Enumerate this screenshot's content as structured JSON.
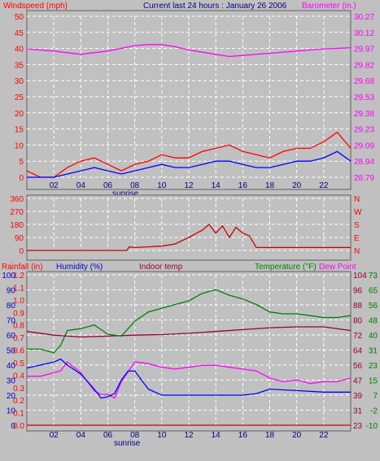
{
  "header": {
    "left_label": "Windspeed (mph)",
    "title": "Current last 24 hours : January 26 2006",
    "right_label": "Barometer (in.)"
  },
  "colors": {
    "background": "#c0c0c0",
    "plot_bg": "#c0c0c0",
    "grid": "#ffffff",
    "wind_avg": "#0000ff",
    "wind_gust": "#ff0000",
    "barometer": "#ff00ff",
    "direction": "#cc0000",
    "indoor": "#990033",
    "outdoor_temp": "#008000",
    "dew_point": "#ff00ff",
    "humidity": "#0000ff",
    "rain": "#cc0000"
  },
  "chart_data": [
    {
      "id": "wind-baro",
      "type": "line",
      "title": "Current last 24 hours : January 26 2006",
      "left_axis": {
        "label": "Windspeed (mph)",
        "ticks": [
          "50",
          "45",
          "40",
          "35",
          "30",
          "25",
          "20",
          "15",
          "10",
          "5",
          "0"
        ],
        "ylim": [
          0,
          50
        ]
      },
      "right_axis": {
        "label": "Barometer (in.)",
        "ticks": [
          "30.27",
          "30.12",
          "29.97",
          "29.82",
          "29.68",
          "29.53",
          "29.38",
          "29.23",
          "29.09",
          "28.94",
          "28.79"
        ],
        "ylim": [
          28.79,
          30.27
        ]
      },
      "x_ticks": [
        "02",
        "04",
        "06",
        "08",
        "10",
        "12",
        "14",
        "16",
        "18",
        "20",
        "22"
      ],
      "x_note": "sunrise",
      "xlim": [
        0,
        24
      ],
      "grid": true,
      "series": [
        {
          "key": "barometer",
          "axis": "right",
          "x": [
            0,
            2,
            4,
            6,
            8,
            9,
            10,
            11,
            12,
            14,
            15,
            16,
            18,
            20,
            22,
            24
          ],
          "values": [
            29.97,
            29.95,
            29.92,
            29.95,
            30.0,
            30.01,
            30.01,
            29.99,
            29.96,
            29.92,
            29.9,
            29.91,
            29.93,
            29.95,
            29.97,
            29.98
          ]
        },
        {
          "key": "wind_gust",
          "axis": "left",
          "x": [
            0,
            1,
            2,
            3,
            4,
            5,
            6,
            7,
            8,
            9,
            10,
            11,
            12,
            13,
            14,
            15,
            16,
            17,
            18,
            19,
            20,
            21,
            22,
            23,
            24
          ],
          "values": [
            2,
            0,
            0,
            3,
            5,
            6,
            4,
            2,
            4,
            5,
            7,
            6,
            6,
            8,
            9,
            10,
            8,
            7,
            6,
            8,
            9,
            9,
            11,
            14,
            9
          ]
        },
        {
          "key": "wind_avg",
          "axis": "left",
          "x": [
            0,
            1,
            2,
            3,
            4,
            5,
            6,
            7,
            8,
            9,
            10,
            11,
            12,
            13,
            14,
            15,
            16,
            17,
            18,
            19,
            20,
            21,
            22,
            23,
            24
          ],
          "values": [
            0,
            0,
            0,
            1,
            2,
            3,
            2,
            1,
            2,
            3,
            4,
            3,
            3,
            4,
            5,
            5,
            4,
            3,
            3,
            4,
            5,
            5,
            6,
            8,
            5
          ]
        }
      ]
    },
    {
      "id": "direction",
      "type": "line",
      "left_axis": {
        "ticks": [
          "360",
          "270",
          "180",
          "90",
          "0"
        ],
        "ylim": [
          0,
          360
        ]
      },
      "right_axis": {
        "ticks": [
          "N",
          "W",
          "S",
          "E",
          "N"
        ]
      },
      "xlim": [
        0,
        24
      ],
      "grid": true,
      "series": [
        {
          "key": "direction",
          "x": [
            0,
            7.4,
            7.6,
            8,
            9,
            10,
            11,
            12,
            13,
            13.5,
            14,
            14.5,
            15,
            15.5,
            16,
            16.5,
            17,
            18,
            20,
            22,
            24
          ],
          "values": [
            0,
            0,
            25,
            20,
            25,
            30,
            45,
            90,
            140,
            180,
            120,
            170,
            90,
            160,
            120,
            100,
            20,
            20,
            20,
            20,
            20
          ]
        }
      ]
    },
    {
      "id": "temp-hum",
      "type": "line",
      "labels": {
        "rainfall": "Rainfall (in)",
        "humidity": "Humidity (%)",
        "indoor": "Indoor temp",
        "temperature": "Temperature (°F)",
        "dewpoint": "Dew Point"
      },
      "left_axes": {
        "humidity_ticks": [
          "100",
          "90",
          "80",
          "70",
          "60",
          "50",
          "40",
          "30",
          "20",
          "10",
          "0"
        ],
        "rainfall_ticks": [
          "1.2",
          "1.1",
          "1.0",
          "0.9",
          "0.8",
          "0.7",
          "0.6",
          "0.5",
          "0.4",
          "0.3",
          "0.2",
          "0.1",
          "0.0"
        ]
      },
      "right_axes": {
        "temp_ticks": [
          "104",
          "96",
          "88",
          "80",
          "72",
          "64",
          "56",
          "47",
          "39",
          "31",
          "23"
        ],
        "dewpoint_ticks": [
          "73",
          "65",
          "56",
          "48",
          "40",
          "31",
          "23",
          "15",
          "7",
          "-2",
          "-10"
        ]
      },
      "x_ticks": [
        "02",
        "04",
        "06",
        "08",
        "10",
        "12",
        "14",
        "16",
        "18",
        "20",
        "22"
      ],
      "x_note": "sunrise",
      "xlim": [
        0,
        24
      ],
      "grid": true,
      "series": [
        {
          "key": "indoor",
          "axis": "temp",
          "x": [
            0,
            2,
            4,
            6,
            8,
            10,
            12,
            14,
            16,
            18,
            20,
            22,
            24
          ],
          "values": [
            73.5,
            71.5,
            70.5,
            71.0,
            71.5,
            71.8,
            72.5,
            73.5,
            74.5,
            75.5,
            76,
            76,
            74
          ]
        },
        {
          "key": "outdoor_temp",
          "axis": "temp",
          "x": [
            0,
            1,
            2,
            2.5,
            3,
            4,
            5,
            6,
            7,
            8,
            9,
            10,
            11,
            12,
            13,
            14,
            15,
            16,
            17,
            18,
            19,
            20,
            21,
            22,
            23,
            24
          ],
          "values": [
            64,
            64,
            62,
            66,
            74,
            75,
            77,
            72,
            71,
            79,
            84,
            86,
            88,
            90,
            94,
            96,
            93,
            91,
            88,
            84,
            83,
            83,
            82,
            81,
            81,
            82
          ]
        },
        {
          "key": "dew_point",
          "axis": "dew",
          "x": [
            0,
            1,
            2,
            2.5,
            3,
            4,
            5,
            5.5,
            6,
            6.5,
            7,
            8,
            9,
            10,
            11,
            12,
            13,
            14,
            15,
            16,
            17,
            18,
            19,
            20,
            21,
            22,
            23,
            24
          ],
          "values": [
            17,
            17,
            19,
            20,
            25,
            19,
            9,
            7,
            7,
            5,
            14,
            25,
            24,
            22,
            21,
            22,
            23,
            23,
            22,
            21,
            20,
            16,
            14,
            15,
            13,
            14,
            14,
            16
          ]
        },
        {
          "key": "humidity",
          "axis": "hum",
          "x": [
            0,
            1,
            2,
            2.5,
            3,
            4,
            5,
            5.5,
            6,
            6.5,
            7,
            7.5,
            8,
            9,
            10,
            12,
            14,
            16,
            17,
            18,
            20,
            22,
            24
          ],
          "values": [
            38,
            40,
            42,
            44,
            40,
            34,
            24,
            18,
            19,
            21,
            30,
            36,
            36,
            24,
            20,
            20,
            20,
            20,
            21,
            24,
            23,
            22,
            22
          ]
        },
        {
          "key": "rain",
          "axis": "rain",
          "x": [
            0,
            24
          ],
          "values": [
            0,
            0
          ]
        }
      ]
    }
  ]
}
